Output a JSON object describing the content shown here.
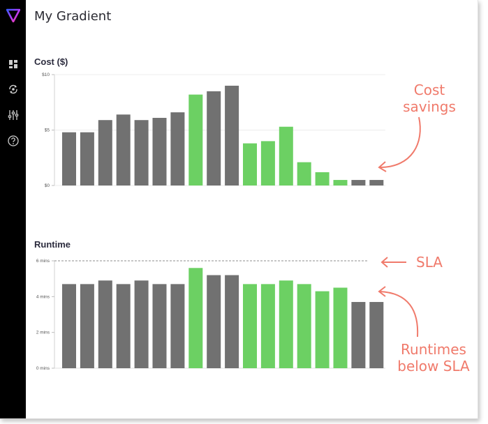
{
  "app": {
    "title": "My Gradient"
  },
  "sidebar": {
    "logo": "gradient-logo",
    "items": [
      {
        "icon": "dashboard-icon"
      },
      {
        "icon": "sync-cost-icon"
      },
      {
        "icon": "sliders-icon"
      },
      {
        "icon": "help-icon"
      }
    ]
  },
  "colors": {
    "bar_gray": "#717171",
    "bar_green": "#6cd063",
    "annotation": "#f07a6b",
    "sidebar": "#000000"
  },
  "annotations": {
    "cost_savings": [
      "Cost",
      "savings"
    ],
    "sla": "SLA",
    "runtimes_below_sla": [
      "Runtimes",
      "below SLA"
    ]
  },
  "chart_data": [
    {
      "type": "bar",
      "title": "Cost ($)",
      "xlabel": "",
      "ylabel": "",
      "ylim": [
        0,
        10
      ],
      "yticks": [
        "$0",
        "$5",
        "$10"
      ],
      "grid": true,
      "values": [
        4.8,
        4.8,
        5.9,
        6.4,
        5.9,
        6.1,
        6.6,
        8.2,
        8.5,
        9.0,
        3.8,
        4.0,
        5.3,
        2.1,
        1.2,
        0.5,
        0.5,
        0.5
      ],
      "bar_colors": [
        "gray",
        "gray",
        "gray",
        "gray",
        "gray",
        "gray",
        "gray",
        "green",
        "gray",
        "gray",
        "green",
        "green",
        "green",
        "green",
        "green",
        "green",
        "gray",
        "gray"
      ]
    },
    {
      "type": "bar",
      "title": "Runtime",
      "xlabel": "",
      "ylabel": "",
      "ylim": [
        0,
        6
      ],
      "yticks": [
        "0 mins",
        "2 mins",
        "4 mins",
        "6 mins"
      ],
      "grid": false,
      "sla_value": 6,
      "values": [
        4.7,
        4.7,
        4.9,
        4.7,
        4.9,
        4.7,
        4.7,
        5.6,
        5.2,
        5.2,
        4.7,
        4.7,
        4.9,
        4.7,
        4.3,
        4.5,
        3.7,
        3.7
      ],
      "bar_colors": [
        "gray",
        "gray",
        "gray",
        "gray",
        "gray",
        "gray",
        "gray",
        "green",
        "gray",
        "gray",
        "green",
        "green",
        "green",
        "green",
        "green",
        "green",
        "gray",
        "gray"
      ]
    }
  ]
}
